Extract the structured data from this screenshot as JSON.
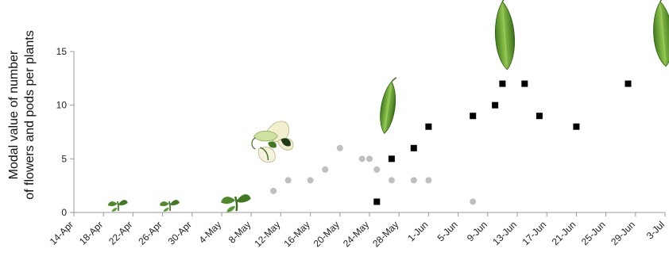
{
  "chart_data": {
    "type": "scatter",
    "title": "",
    "xlabel": "",
    "ylabel": [
      "Modal value of number",
      "of flowers and pods per plants"
    ],
    "x_tick_labels": [
      "14-Apr",
      "18-Apr",
      "22-Apr",
      "26-Apr",
      "30-Apr",
      "4-May",
      "8-May",
      "12-May",
      "16-May",
      "20-May",
      "24-May",
      "28-May",
      "1-Jun",
      "5-Jun",
      "9-Jun",
      "13-Jun",
      "17-Jun",
      "21-Jun",
      "25-Jun",
      "29-Jun",
      "3-Jul"
    ],
    "x_range": [
      "2018-04-14",
      "2018-07-03"
    ],
    "y_ticks": [
      0,
      5,
      10,
      15
    ],
    "ylim": [
      0,
      15
    ],
    "grid": false,
    "series": [
      {
        "marker": "circle",
        "color": "#bfbfbf",
        "points": [
          {
            "x": "2018-05-11",
            "y": 2
          },
          {
            "x": "2018-05-13",
            "y": 3
          },
          {
            "x": "2018-05-16",
            "y": 3
          },
          {
            "x": "2018-05-18",
            "y": 4
          },
          {
            "x": "2018-05-20",
            "y": 6
          },
          {
            "x": "2018-05-23",
            "y": 5
          },
          {
            "x": "2018-05-24",
            "y": 5
          },
          {
            "x": "2018-05-25",
            "y": 4
          },
          {
            "x": "2018-05-27",
            "y": 3
          },
          {
            "x": "2018-05-30",
            "y": 3
          },
          {
            "x": "2018-06-01",
            "y": 3
          },
          {
            "x": "2018-06-07",
            "y": 1
          }
        ]
      },
      {
        "marker": "square",
        "color": "#000000",
        "points": [
          {
            "x": "2018-05-25",
            "y": 1
          },
          {
            "x": "2018-05-27",
            "y": 5
          },
          {
            "x": "2018-05-30",
            "y": 6
          },
          {
            "x": "2018-06-01",
            "y": 8
          },
          {
            "x": "2018-06-07",
            "y": 9
          },
          {
            "x": "2018-06-10",
            "y": 10
          },
          {
            "x": "2018-06-11",
            "y": 12
          },
          {
            "x": "2018-06-14",
            "y": 12
          },
          {
            "x": "2018-06-16",
            "y": 9
          },
          {
            "x": "2018-06-21",
            "y": 8
          },
          {
            "x": "2018-06-28",
            "y": 12
          }
        ]
      }
    ],
    "illustrations": [
      {
        "icon": "seedling-icon",
        "x": "2018-04-20"
      },
      {
        "icon": "seedling-icon",
        "x": "2018-04-27"
      },
      {
        "icon": "seedling-icon",
        "x": "2018-05-06"
      },
      {
        "icon": "pea-flower-icon",
        "x": "2018-05-09"
      },
      {
        "icon": "pea-pod-icon",
        "x": "2018-05-27"
      },
      {
        "icon": "pea-pod-icon",
        "x": "2018-06-11"
      },
      {
        "icon": "pea-pod-icon",
        "x": "2018-07-03"
      }
    ]
  }
}
